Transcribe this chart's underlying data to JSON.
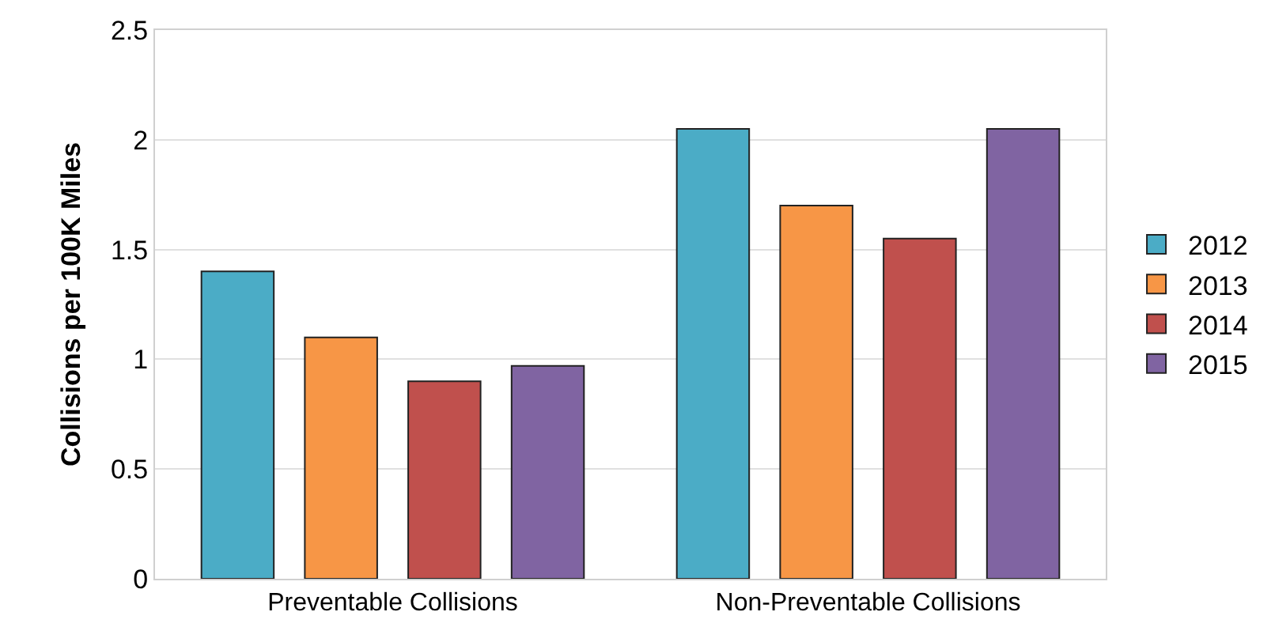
{
  "chart_data": {
    "type": "bar",
    "ylabel": "Collisions per 100K Miles",
    "categories": [
      "Preventable Collisions",
      "Non-Preventable Collisions"
    ],
    "series": [
      {
        "name": "2012",
        "color": "#4bacc6",
        "values": [
          1.4,
          2.05
        ]
      },
      {
        "name": "2013",
        "color": "#f79646",
        "values": [
          1.1,
          1.7
        ]
      },
      {
        "name": "2014",
        "color": "#c0504d",
        "values": [
          0.9,
          1.55
        ]
      },
      {
        "name": "2015",
        "color": "#8064a2",
        "values": [
          0.97,
          2.05
        ]
      }
    ],
    "ylim": [
      0,
      2.5
    ],
    "yticks": [
      0,
      0.5,
      1,
      1.5,
      2,
      2.5
    ],
    "grid": "y",
    "legend": "right"
  }
}
